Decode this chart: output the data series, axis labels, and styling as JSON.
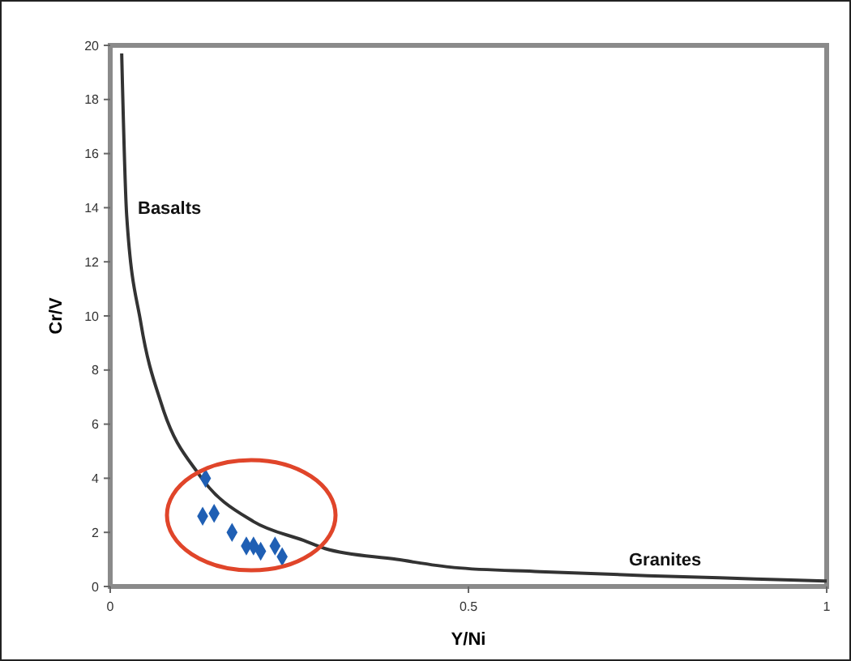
{
  "chart_data": {
    "type": "scatter",
    "xlabel": "Y/Ni",
    "ylabel": "Cr/V",
    "xlim": [
      0,
      1
    ],
    "xticks": [
      0,
      0.5,
      1
    ],
    "ylim": [
      0,
      20
    ],
    "yticks": [
      0,
      2,
      4,
      6,
      8,
      10,
      12,
      14,
      16,
      18,
      20
    ],
    "grid": false,
    "marker": "diamond",
    "series": [
      {
        "type": "line",
        "color": "#333333",
        "marker": "none",
        "x": [
          0.016,
          0.023,
          0.043,
          0.072,
          0.125,
          0.2,
          0.27,
          0.3,
          0.4,
          0.48,
          0.6,
          0.75,
          0.9,
          1
        ],
        "values": [
          19.7,
          13.7,
          9.7,
          6.7,
          4.1,
          2.4,
          1.7,
          1.4,
          1.0,
          0.7,
          0.55,
          0.4,
          0.28,
          0.2
        ]
      },
      {
        "color": "#1f5fb4",
        "x": [
          0.133,
          0.129,
          0.145,
          0.17,
          0.19,
          0.21,
          0.23,
          0.24,
          0.2
        ],
        "values": [
          4.0,
          2.6,
          2.7,
          2.0,
          1.5,
          1.3,
          1.5,
          1.1,
          1.5
        ]
      }
    ],
    "annotations": [
      "Basalts",
      "Granites"
    ]
  }
}
